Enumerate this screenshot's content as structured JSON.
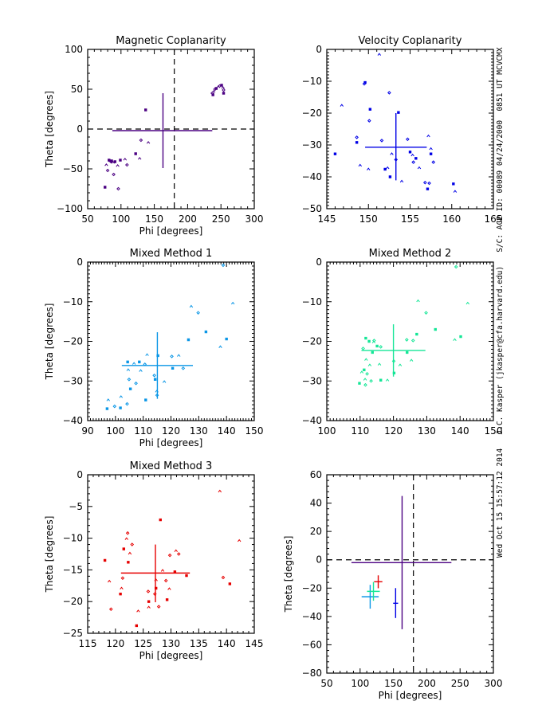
{
  "side_annotation": "Wed Oct 15 15:57:12 2014   J.C. Kasper (jkasper@cfa.harvard.edu)   S/C: ACE ID: 00089 04/24/2000  0851 UT MCVCMX",
  "colors": {
    "magnetic": "#4b0082",
    "velocity": "#0000e6",
    "mixed1": "#0a96e6",
    "mixed2": "#14e696",
    "mixed3": "#e60000"
  },
  "chart_data": [
    {
      "id": "magnetic",
      "type": "scatter",
      "title": "Magnetic Coplanarity",
      "xlabel": "Phi [degrees]",
      "ylabel": "Theta [degrees]",
      "xlim": [
        50,
        300
      ],
      "ylim": [
        -100,
        100
      ],
      "xticks": [
        50,
        100,
        150,
        200,
        250,
        300
      ],
      "yticks": [
        -100,
        -50,
        0,
        50,
        100
      ],
      "show_xlabel": true,
      "show_ylabel": true,
      "reference_lines": {
        "x": 180,
        "y": 0
      },
      "color_key": "magnetic",
      "points": [
        [
          76,
          -73
        ],
        [
          78,
          -45
        ],
        [
          80,
          -52
        ],
        [
          82,
          -39
        ],
        [
          84,
          -40
        ],
        [
          85,
          -41
        ],
        [
          86,
          -40
        ],
        [
          88,
          -42
        ],
        [
          89,
          -57
        ],
        [
          91,
          -41
        ],
        [
          95,
          -46
        ],
        [
          96,
          -75
        ],
        [
          99,
          -39
        ],
        [
          106,
          -38
        ],
        [
          109,
          -45
        ],
        [
          122,
          -31
        ],
        [
          128,
          -37
        ],
        [
          130,
          -14
        ],
        [
          137,
          24
        ],
        [
          141,
          -17
        ],
        [
          237,
          45
        ],
        [
          238,
          43
        ],
        [
          239,
          47
        ],
        [
          241,
          50
        ],
        [
          243,
          51
        ],
        [
          246,
          53
        ],
        [
          248,
          54
        ],
        [
          251,
          55
        ],
        [
          253,
          52
        ],
        [
          254,
          49
        ],
        [
          254,
          45
        ]
      ],
      "mean": {
        "x": 163,
        "y": -2
      },
      "error": {
        "x_minus": 76,
        "x_plus": 74,
        "y_minus": 47,
        "y_plus": 47
      }
    },
    {
      "id": "velocity",
      "type": "scatter",
      "title": "Velocity Coplanarity",
      "xlabel": "",
      "ylabel": "",
      "xlim": [
        145,
        165
      ],
      "ylim": [
        -50,
        0
      ],
      "xticks": [
        145,
        150,
        155,
        160,
        165
      ],
      "yticks": [
        -50,
        -40,
        -30,
        -20,
        -10,
        0
      ],
      "show_xlabel": false,
      "show_ylabel": false,
      "color_key": "velocity",
      "points": [
        [
          146,
          -32.8
        ],
        [
          146.8,
          -17.6
        ],
        [
          148.6,
          -27.6
        ],
        [
          148.6,
          -29.2
        ],
        [
          149,
          -36.4
        ],
        [
          149.5,
          -10.8
        ],
        [
          149.6,
          -10.4
        ],
        [
          150,
          -37.6
        ],
        [
          150.1,
          -22.4
        ],
        [
          150.2,
          -18.8
        ],
        [
          151.3,
          -1.6
        ],
        [
          151.6,
          -28.6
        ],
        [
          152,
          -37.6
        ],
        [
          152.3,
          -37.2
        ],
        [
          152.5,
          -13.6
        ],
        [
          152.6,
          -40
        ],
        [
          152.8,
          -32.8
        ],
        [
          153.3,
          -34.6
        ],
        [
          153.6,
          -19.8
        ],
        [
          154,
          -41.4
        ],
        [
          154.7,
          -28.2
        ],
        [
          155,
          -32.2
        ],
        [
          155.3,
          -33.2
        ],
        [
          155.4,
          -35.4
        ],
        [
          155.7,
          -34.2
        ],
        [
          156.1,
          -37.2
        ],
        [
          156.8,
          -41.8
        ],
        [
          157.1,
          -43.8
        ],
        [
          157.2,
          -27.2
        ],
        [
          157.3,
          -42
        ],
        [
          157.5,
          -32.8
        ],
        [
          157.5,
          -31.2
        ],
        [
          157.8,
          -35.4
        ],
        [
          160.2,
          -42.2
        ],
        [
          160.4,
          -44.6
        ]
      ],
      "mean": {
        "x": 153.3,
        "y": -30.7
      },
      "error": {
        "x_minus": 3.7,
        "x_plus": 3.7,
        "y_minus": 10.4,
        "y_plus": 10.7
      }
    },
    {
      "id": "mixed1",
      "type": "scatter",
      "title": "Mixed Method 1",
      "xlabel": "Phi [degrees]",
      "ylabel": "Theta [degrees]",
      "xlim": [
        90,
        150
      ],
      "ylim": [
        -40,
        0
      ],
      "xticks": [
        90,
        100,
        110,
        120,
        130,
        140,
        150
      ],
      "yticks": [
        -40,
        -30,
        -20,
        -10,
        0
      ],
      "show_xlabel": true,
      "show_ylabel": true,
      "color_key": "mixed1",
      "points": [
        [
          97,
          -37
        ],
        [
          97.4,
          -34.8
        ],
        [
          99.7,
          -36.4
        ],
        [
          101.8,
          -36.8
        ],
        [
          102,
          -34
        ],
        [
          104.2,
          -35.8
        ],
        [
          104.4,
          -25.2
        ],
        [
          104.6,
          -27.2
        ],
        [
          104.9,
          -29.6
        ],
        [
          105.4,
          -32
        ],
        [
          106.7,
          -25.6
        ],
        [
          107.4,
          -30.6
        ],
        [
          108.6,
          -25.2
        ],
        [
          109.1,
          -27.4
        ],
        [
          110.6,
          -25.8
        ],
        [
          110.9,
          -34.8
        ],
        [
          111.4,
          -23.4
        ],
        [
          114,
          -28.6
        ],
        [
          114.3,
          -29.6
        ],
        [
          114.9,
          -32.6
        ],
        [
          115,
          -33.6
        ],
        [
          115.3,
          -23.6
        ],
        [
          117.6,
          -30.2
        ],
        [
          120.3,
          -23.8
        ],
        [
          120.6,
          -26.8
        ],
        [
          122.8,
          -23.6
        ],
        [
          124.4,
          -26.8
        ],
        [
          126.3,
          -19.6
        ],
        [
          127.3,
          -11.2
        ],
        [
          129.8,
          -12.8
        ],
        [
          132.6,
          -17.6
        ],
        [
          137.8,
          -21.4
        ],
        [
          138.8,
          -0.8
        ],
        [
          140,
          -19.4
        ],
        [
          142.3,
          -10.4
        ]
      ],
      "mean": {
        "x": 115.1,
        "y": -26.1
      },
      "error": {
        "x_minus": 12.8,
        "x_plus": 12.8,
        "y_minus": 8.4,
        "y_plus": 8.4
      }
    },
    {
      "id": "mixed2",
      "type": "scatter",
      "title": "Mixed Method 2",
      "xlabel": "",
      "ylabel": "",
      "xlim": [
        100,
        150
      ],
      "ylim": [
        -40,
        0
      ],
      "xticks": [
        100,
        110,
        120,
        130,
        140,
        150
      ],
      "yticks": [
        -40,
        -30,
        -20,
        -10,
        0
      ],
      "show_xlabel": false,
      "show_ylabel": false,
      "color_key": "mixed2",
      "points": [
        [
          109.8,
          -30.6
        ],
        [
          110.5,
          -27.8
        ],
        [
          110.9,
          -21.8
        ],
        [
          111.2,
          -27.2
        ],
        [
          111.5,
          -29.6
        ],
        [
          111.6,
          -31
        ],
        [
          111.7,
          -19.2
        ],
        [
          111.8,
          -24.6
        ],
        [
          112.1,
          -28.2
        ],
        [
          112.7,
          -20
        ],
        [
          112.9,
          -26
        ],
        [
          113.3,
          -30
        ],
        [
          113.7,
          -22.8
        ],
        [
          114.1,
          -20.2
        ],
        [
          114.2,
          -19.8
        ],
        [
          115.1,
          -21.2
        ],
        [
          115.8,
          -25.8
        ],
        [
          116.2,
          -21.4
        ],
        [
          116.2,
          -29.8
        ],
        [
          118.2,
          -29.8
        ],
        [
          120.1,
          -25
        ],
        [
          120.2,
          -28
        ],
        [
          122,
          -26
        ],
        [
          124,
          -19.6
        ],
        [
          124.1,
          -22.8
        ],
        [
          125.4,
          -24.8
        ],
        [
          125.9,
          -19.8
        ],
        [
          127,
          -18.2
        ],
        [
          127.4,
          -9.8
        ],
        [
          129.8,
          -12.8
        ],
        [
          132.6,
          -17
        ],
        [
          138.4,
          -19.6
        ],
        [
          138.8,
          -1.2
        ],
        [
          140.2,
          -18.8
        ],
        [
          142.3,
          -10.4
        ]
      ],
      "mean": {
        "x": 120,
        "y": -22.3
      },
      "error": {
        "x_minus": 9.6,
        "x_plus": 9.6,
        "y_minus": 6.6,
        "y_plus": 6.6
      }
    },
    {
      "id": "mixed3",
      "type": "scatter",
      "title": "Mixed Method 3",
      "xlabel": "Phi [degrees]",
      "ylabel": "Theta [degrees]",
      "xlim": [
        115,
        145
      ],
      "ylim": [
        -25,
        0
      ],
      "xticks": [
        115,
        120,
        125,
        130,
        135,
        140,
        145
      ],
      "yticks": [
        -25,
        -20,
        -15,
        -10,
        -5,
        0
      ],
      "show_xlabel": true,
      "show_ylabel": true,
      "color_key": "mixed3",
      "points": [
        [
          118.1,
          -13.5
        ],
        [
          118.9,
          -16.8
        ],
        [
          119.2,
          -21.2
        ],
        [
          120.9,
          -18.8
        ],
        [
          121.1,
          -17.9
        ],
        [
          121.3,
          -16.3
        ],
        [
          121.5,
          -11.7
        ],
        [
          122,
          -10.1
        ],
        [
          122.2,
          -9.2
        ],
        [
          122.3,
          -13.8
        ],
        [
          122.6,
          -12.4
        ],
        [
          123,
          -11
        ],
        [
          123.8,
          -23.8
        ],
        [
          124.1,
          -21.5
        ],
        [
          125.9,
          -18.4
        ],
        [
          126,
          -20
        ],
        [
          126,
          -20.9
        ],
        [
          127.1,
          -18.8
        ],
        [
          127.3,
          -17.9
        ],
        [
          127.3,
          -16.6
        ],
        [
          127.8,
          -20.8
        ],
        [
          128.1,
          -7.1
        ],
        [
          128.5,
          -15.1
        ],
        [
          129.1,
          -16.7
        ],
        [
          129.3,
          -19.7
        ],
        [
          129.7,
          -18
        ],
        [
          129.8,
          -12.7
        ],
        [
          130.7,
          -15.3
        ],
        [
          130.9,
          -12
        ],
        [
          131.4,
          -12.5
        ],
        [
          132.8,
          -15.9
        ],
        [
          138.8,
          -2.6
        ],
        [
          139.4,
          -16.2
        ],
        [
          140.6,
          -17.2
        ],
        [
          142.3,
          -10.4
        ]
      ],
      "mean": {
        "x": 127.2,
        "y": -15.5
      },
      "error": {
        "x_minus": 6.2,
        "x_plus": 6.2,
        "y_minus": 4.6,
        "y_plus": 4.5
      }
    },
    {
      "id": "summary",
      "type": "scatter",
      "title": "",
      "xlabel": "Phi [degrees]",
      "ylabel": "Theta [degrees]",
      "xlim": [
        50,
        300
      ],
      "ylim": [
        -80,
        60
      ],
      "xticks": [
        50,
        100,
        150,
        200,
        250,
        300
      ],
      "yticks": [
        -80,
        -60,
        -40,
        -20,
        0,
        20,
        40,
        60
      ],
      "show_xlabel": true,
      "show_ylabel": true,
      "reference_lines": {
        "x": 180,
        "y": 0
      },
      "crosses": [
        {
          "name": "Magnetic Coplanarity",
          "color_key": "magnetic",
          "x": 163,
          "y": -2,
          "x_minus": 76,
          "x_plus": 74,
          "y_minus": 47,
          "y_plus": 47
        },
        {
          "name": "Velocity Coplanarity",
          "color_key": "velocity",
          "x": 153.3,
          "y": -30.7,
          "x_minus": 3.7,
          "x_plus": 3.7,
          "y_minus": 10.4,
          "y_plus": 10.7
        },
        {
          "name": "Mixed Method 1",
          "color_key": "mixed1",
          "x": 115.1,
          "y": -26.1,
          "x_minus": 12.8,
          "x_plus": 12.8,
          "y_minus": 8.4,
          "y_plus": 8.4
        },
        {
          "name": "Mixed Method 2",
          "color_key": "mixed2",
          "x": 120,
          "y": -22.3,
          "x_minus": 9.6,
          "x_plus": 9.6,
          "y_minus": 6.6,
          "y_plus": 6.6
        },
        {
          "name": "Mixed Method 3",
          "color_key": "mixed3",
          "x": 127.2,
          "y": -15.5,
          "x_minus": 6.2,
          "x_plus": 6.2,
          "y_minus": 4.6,
          "y_plus": 4.5
        }
      ]
    }
  ]
}
